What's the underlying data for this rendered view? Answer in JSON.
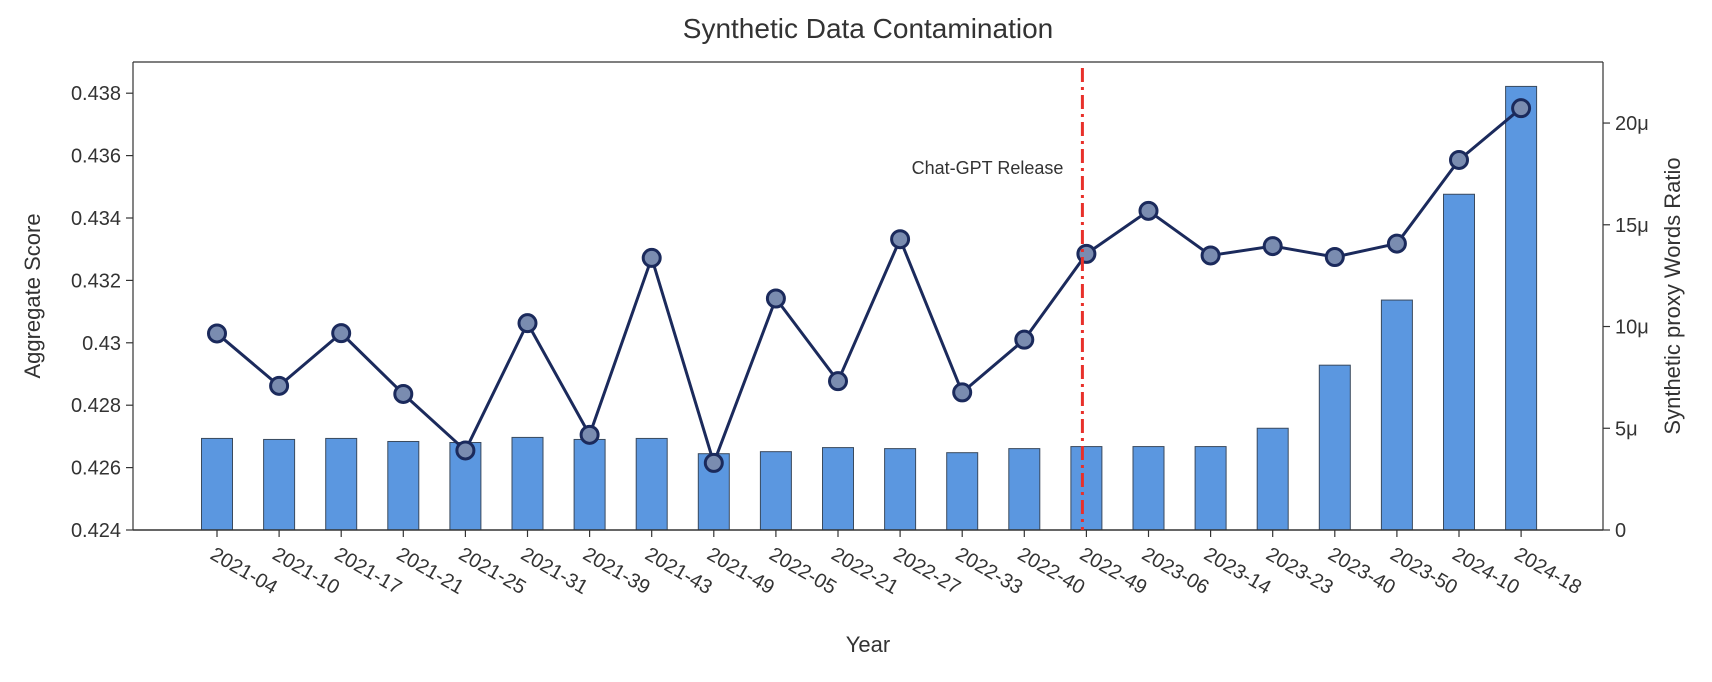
{
  "chart_data": {
    "type": "bar+line",
    "title": "Synthetic Data Contamination",
    "xlabel": "Year",
    "ylabel_left": "Aggregate Score",
    "ylabel_right": "Synthetic proxy Words Ratio",
    "categories": [
      "2021-04",
      "2021-10",
      "2021-17",
      "2021-21",
      "2021-25",
      "2021-31",
      "2021-39",
      "2021-43",
      "2021-49",
      "2022-05",
      "2022-21",
      "2022-27",
      "2022-33",
      "2022-40",
      "2022-49",
      "2023-06",
      "2023-14",
      "2023-23",
      "2023-40",
      "2023-50",
      "2024-10",
      "2024-18"
    ],
    "series": [
      {
        "name": "Aggregate Score",
        "type": "line",
        "axis": "left",
        "values": [
          0.4303,
          0.42862,
          0.43031,
          0.42836,
          0.42655,
          0.43063,
          0.42705,
          0.43272,
          0.42615,
          0.43142,
          0.42877,
          0.43332,
          0.42841,
          0.4301,
          0.43285,
          0.43423,
          0.4328,
          0.4331,
          0.43275,
          0.43318,
          0.43586,
          0.43752
        ]
      },
      {
        "name": "Synthetic proxy Words Ratio",
        "type": "bar",
        "axis": "right",
        "values": [
          4.5,
          4.45,
          4.5,
          4.35,
          4.3,
          4.55,
          4.45,
          4.5,
          3.75,
          3.85,
          4.05,
          4.0,
          3.8,
          4.0,
          4.1,
          4.1,
          4.1,
          5.0,
          8.1,
          11.3,
          16.5,
          21.8
        ]
      }
    ],
    "ylim_left": [
      0.424,
      0.439
    ],
    "yticks_left": [
      "0.424",
      "0.426",
      "0.428",
      "0.43",
      "0.432",
      "0.434",
      "0.436",
      "0.438"
    ],
    "ylim_right": [
      0,
      23
    ],
    "yticks_right": [
      "0",
      "5μ",
      "10μ",
      "15μ",
      "20μ"
    ],
    "annotation": {
      "label": "Chat-GPT Release",
      "at_category": "2022-49"
    },
    "colors": {
      "bar_fill": "#5b97e0",
      "bar_edge": "#3a4a5e",
      "line": "#1b2a5c",
      "marker_fill": "#7a8cb0",
      "vline": "#e8302a",
      "axis": "#333333"
    },
    "grid": false,
    "legend": "none"
  }
}
